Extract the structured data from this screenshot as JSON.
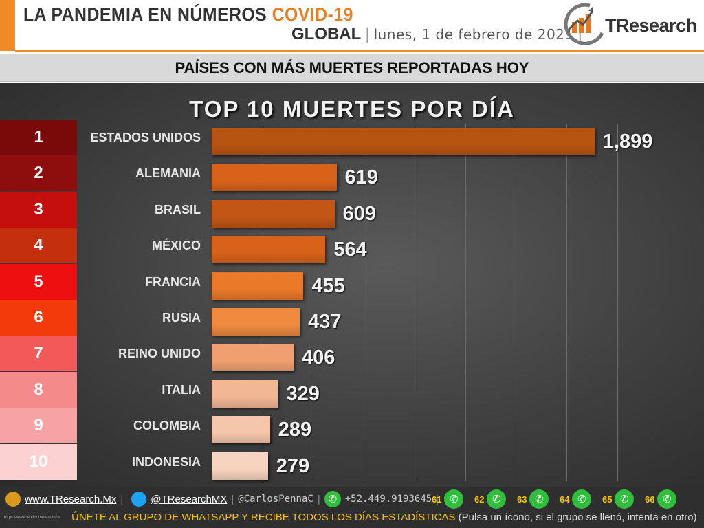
{
  "header": {
    "title_part1": "LA PANDEMIA EN NÚMEROS",
    "title_part2": "COVID-19",
    "scope": "GLOBAL",
    "date": "lunes, 1 de febrero de 2021",
    "brand": "TResearch"
  },
  "band_title": "PAÍSES CON MÁS MUERTES REPORTADAS HOY",
  "chart_data": {
    "type": "bar",
    "orientation": "horizontal",
    "title": "TOP 10 MUERTES POR DÍA",
    "ranks": [
      "1",
      "2",
      "3",
      "4",
      "5",
      "6",
      "7",
      "8",
      "9",
      "10"
    ],
    "categories": [
      "ESTADOS UNIDOS",
      "ALEMANIA",
      "BRASIL",
      "MÉXICO",
      "FRANCIA",
      "RUSIA",
      "REINO UNIDO",
      "ITALIA",
      "COLOMBIA",
      "INDONESIA"
    ],
    "values": [
      1899,
      619,
      609,
      564,
      455,
      437,
      406,
      329,
      289,
      279
    ],
    "value_labels": [
      "1,899",
      "619",
      "609",
      "564",
      "455",
      "437",
      "406",
      "329",
      "289",
      "279"
    ],
    "xlim": [
      0,
      2100
    ],
    "grid": true,
    "rank_colors": [
      "#7a0a0a",
      "#8e0d0d",
      "#c50f0f",
      "#c4300d",
      "#ee1010",
      "#f23a0a",
      "#f25a5a",
      "#f58a8a",
      "#f7a3a3",
      "#fbd1d1"
    ],
    "bar_colors": [
      "#b85412",
      "#d9621a",
      "#c25615",
      "#d9621a",
      "#ea7a2a",
      "#ef8a3f",
      "#f0a070",
      "#f2b896",
      "#f5c6ac",
      "#f8d4c0"
    ]
  },
  "footer": {
    "website": "www.TResearch.Mx",
    "twitter": "@TResearchMX",
    "author": "@CarlosPennaC",
    "phone": "+52.449.9193645",
    "groups": [
      "61",
      "62",
      "63",
      "64",
      "65",
      "66"
    ],
    "cta": "ÚNETE AL GRUPO DE WHATSAPP Y RECIBE TODOS LOS DÍAS ESTADÍSTICAS",
    "cta_note": "(Pulsa un ícono, si el grupo se llenó, intenta en otro)",
    "source": "https://www.worldometers.info/"
  }
}
